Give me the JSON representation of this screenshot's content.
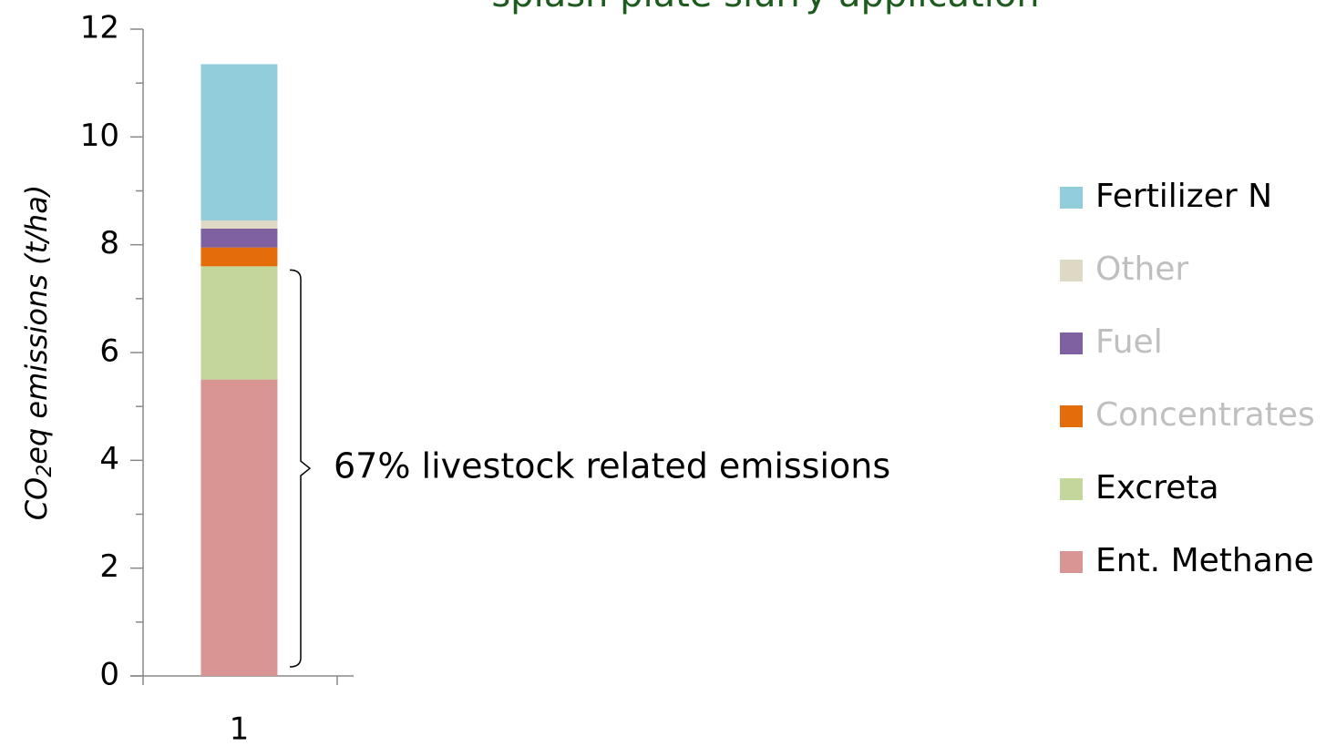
{
  "chart_data": {
    "type": "stacked_bar",
    "title": "splash plate slurry application",
    "ylabel_parts": [
      "CO",
      "2",
      "eq emissions (t/ha)"
    ],
    "categories": [
      "1"
    ],
    "series": [
      {
        "name": "Ent. Methane",
        "color": "#d99594",
        "legend_text_color": "#000000",
        "values": [
          5.5
        ]
      },
      {
        "name": "Excreta",
        "color": "#c3d69b",
        "legend_text_color": "#000000",
        "values": [
          2.1
        ]
      },
      {
        "name": "Concentrates",
        "color": "#e46c0a",
        "legend_text_color": "#bfbfbf",
        "values": [
          0.35
        ]
      },
      {
        "name": "Fuel",
        "color": "#7f60a0",
        "legend_text_color": "#bfbfbf",
        "values": [
          0.35
        ]
      },
      {
        "name": "Other",
        "color": "#ddd9c4",
        "legend_text_color": "#bfbfbf",
        "values": [
          0.15
        ]
      },
      {
        "name": "Fertilizer N",
        "color": "#92cddc",
        "legend_text_color": "#000000",
        "values": [
          2.9
        ]
      }
    ],
    "ylim": [
      0,
      12
    ],
    "yticks": [
      0,
      2,
      4,
      6,
      8,
      10,
      12
    ],
    "yminor_ticks": [
      1,
      3,
      5,
      7,
      9,
      11
    ],
    "annotation": {
      "text": "67% livestock related emissions",
      "spans_series": [
        0,
        1
      ]
    },
    "legend": "right"
  }
}
